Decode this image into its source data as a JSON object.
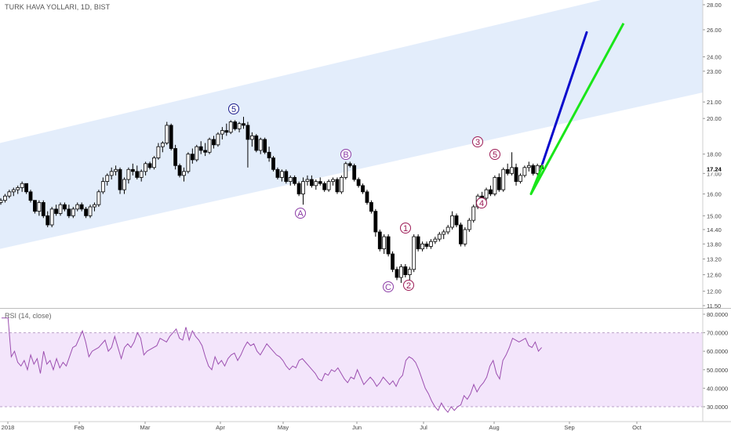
{
  "header": {
    "title": "TURK HAVA YOLLARI, 1D, BIST"
  },
  "rsi": {
    "label": "RSI (14, close)",
    "ticks": [
      30,
      40,
      50,
      60,
      70,
      80
    ],
    "tick_labels": [
      "30.0000",
      "40.0000",
      "50.0000",
      "60.0000",
      "70.0000",
      "80.0000"
    ],
    "upper": 70,
    "lower": 30,
    "values": [
      78,
      78,
      78,
      57,
      60,
      54,
      52,
      55,
      50,
      58,
      53,
      56,
      48,
      60,
      53,
      55,
      50,
      56,
      51,
      54,
      52,
      57,
      62,
      63,
      67,
      71,
      65,
      57,
      60,
      61,
      62,
      64,
      66,
      60,
      62,
      68,
      62,
      56,
      62,
      64,
      62,
      65,
      70,
      67,
      58,
      60,
      61,
      62,
      63,
      67,
      66,
      65,
      68,
      70,
      72,
      67,
      66,
      73,
      66,
      71,
      68,
      66,
      63,
      57,
      52,
      50,
      57,
      53,
      55,
      52,
      56,
      58,
      59,
      55,
      58,
      62,
      65,
      63,
      64,
      60,
      58,
      61,
      64,
      62,
      60,
      58,
      57,
      55,
      52,
      50,
      52,
      51,
      55,
      56,
      54,
      52,
      50,
      48,
      45,
      44,
      48,
      47,
      50,
      49,
      51,
      48,
      45,
      43,
      46,
      45,
      50,
      46,
      42,
      44,
      46,
      44,
      41,
      43,
      46,
      44,
      42,
      44,
      41,
      45,
      47,
      55,
      57,
      56,
      54,
      50,
      45,
      40,
      37,
      33,
      30,
      28,
      32,
      29,
      27,
      30,
      28,
      30,
      31,
      36,
      34,
      37,
      42,
      38,
      41,
      43,
      46,
      52,
      55,
      48,
      45,
      55,
      58,
      62,
      67,
      66,
      65,
      66,
      67,
      63,
      62,
      65,
      60,
      62
    ]
  },
  "chart_data": {
    "type": "candlestick",
    "title": "TURK HAVA YOLLARI, 1D, BIST",
    "price_axis": {
      "ticks": [
        11.5,
        12.0,
        12.6,
        13.2,
        13.8,
        14.4,
        15.0,
        16.0,
        17.0,
        18.0,
        20.0,
        21.0,
        23.0,
        24.0,
        26.0,
        28.0
      ],
      "tick_labels": [
        "11.50",
        "12.00",
        "12.60",
        "13.20",
        "13.80",
        "14.40",
        "15.00",
        "16.00",
        "17.00",
        "18.00",
        "20.00",
        "21.00",
        "23.00",
        "24.00",
        "26.00",
        "28.00"
      ],
      "scale": "log",
      "last_price": 17.24,
      "last_price_label": "17.24"
    },
    "time_axis": {
      "labels": [
        "2018",
        "Feb",
        "Mar",
        "Apr",
        "May",
        "Jun",
        "Jul",
        "Aug",
        "Sep",
        "Oct"
      ]
    },
    "candles": [
      [
        15.6,
        15.8,
        15.5,
        15.7
      ],
      [
        15.7,
        16.0,
        15.6,
        15.9
      ],
      [
        15.9,
        16.2,
        15.8,
        16.1
      ],
      [
        16.1,
        16.3,
        15.9,
        16.2
      ],
      [
        16.2,
        16.4,
        16.0,
        16.3
      ],
      [
        16.3,
        16.6,
        16.1,
        16.5
      ],
      [
        16.5,
        16.5,
        16.0,
        16.1
      ],
      [
        16.1,
        16.2,
        15.6,
        15.7
      ],
      [
        15.7,
        15.7,
        15.1,
        15.2
      ],
      [
        15.2,
        15.7,
        15.0,
        15.6
      ],
      [
        15.6,
        15.7,
        14.9,
        15.0
      ],
      [
        15.0,
        15.2,
        14.5,
        14.6
      ],
      [
        14.6,
        15.4,
        14.5,
        15.3
      ],
      [
        15.3,
        15.5,
        15.0,
        15.1
      ],
      [
        15.1,
        15.6,
        15.0,
        15.5
      ],
      [
        15.5,
        15.6,
        15.2,
        15.3
      ],
      [
        15.3,
        15.5,
        14.9,
        15.0
      ],
      [
        15.0,
        15.4,
        14.9,
        15.3
      ],
      [
        15.3,
        15.6,
        15.2,
        15.5
      ],
      [
        15.5,
        15.6,
        15.2,
        15.3
      ],
      [
        15.3,
        15.4,
        14.9,
        15.0
      ],
      [
        15.0,
        15.5,
        14.9,
        15.4
      ],
      [
        15.4,
        15.6,
        15.2,
        15.5
      ],
      [
        15.5,
        16.2,
        15.4,
        16.1
      ],
      [
        16.1,
        16.8,
        16.0,
        16.6
      ],
      [
        16.6,
        17.0,
        16.4,
        16.9
      ],
      [
        16.9,
        17.3,
        16.7,
        17.1
      ],
      [
        17.1,
        17.4,
        16.9,
        17.2
      ],
      [
        17.2,
        17.3,
        16.0,
        16.2
      ],
      [
        16.2,
        16.8,
        16.0,
        16.7
      ],
      [
        16.7,
        17.3,
        16.5,
        17.2
      ],
      [
        17.2,
        17.5,
        16.9,
        17.1
      ],
      [
        17.1,
        17.4,
        16.7,
        16.8
      ],
      [
        16.8,
        17.2,
        16.6,
        17.1
      ],
      [
        17.1,
        17.6,
        16.9,
        17.5
      ],
      [
        17.5,
        17.6,
        17.2,
        17.3
      ],
      [
        17.3,
        17.9,
        17.2,
        17.8
      ],
      [
        17.8,
        18.6,
        17.7,
        18.4
      ],
      [
        18.4,
        18.7,
        18.1,
        18.6
      ],
      [
        18.6,
        19.8,
        18.5,
        19.6
      ],
      [
        19.6,
        19.7,
        18.2,
        18.3
      ],
      [
        18.3,
        18.5,
        17.2,
        17.4
      ],
      [
        17.4,
        17.5,
        16.8,
        16.9
      ],
      [
        16.9,
        17.3,
        16.6,
        17.1
      ],
      [
        17.1,
        18.1,
        17.0,
        18.0
      ],
      [
        18.0,
        18.3,
        17.5,
        17.7
      ],
      [
        17.7,
        18.5,
        17.6,
        18.4
      ],
      [
        18.4,
        18.7,
        18.0,
        18.2
      ],
      [
        18.2,
        18.6,
        17.9,
        18.1
      ],
      [
        18.1,
        18.9,
        18.0,
        18.8
      ],
      [
        18.8,
        19.0,
        18.3,
        18.5
      ],
      [
        18.5,
        19.2,
        18.4,
        19.1
      ],
      [
        19.1,
        19.5,
        18.8,
        19.3
      ],
      [
        19.3,
        19.7,
        19.0,
        19.2
      ],
      [
        19.2,
        19.9,
        19.1,
        19.8
      ],
      [
        19.8,
        19.9,
        19.3,
        19.4
      ],
      [
        19.4,
        19.8,
        19.2,
        19.7
      ],
      [
        19.7,
        20.1,
        19.4,
        19.6
      ],
      [
        19.6,
        19.8,
        17.3,
        18.8
      ],
      [
        18.8,
        19.2,
        18.4,
        19.0
      ],
      [
        19.0,
        19.1,
        18.1,
        18.2
      ],
      [
        18.2,
        18.9,
        18.0,
        18.8
      ],
      [
        18.8,
        18.9,
        18.0,
        18.1
      ],
      [
        18.1,
        18.4,
        17.6,
        17.8
      ],
      [
        17.8,
        17.9,
        17.1,
        17.2
      ],
      [
        17.2,
        17.3,
        16.7,
        16.8
      ],
      [
        16.8,
        17.2,
        16.6,
        17.1
      ],
      [
        17.1,
        17.2,
        16.5,
        16.6
      ],
      [
        16.6,
        16.9,
        16.4,
        16.8
      ],
      [
        16.8,
        16.9,
        16.4,
        16.5
      ],
      [
        16.5,
        16.6,
        15.9,
        16.0
      ],
      [
        16.0,
        16.8,
        15.5,
        16.6
      ],
      [
        16.6,
        16.9,
        16.4,
        16.7
      ],
      [
        16.7,
        16.9,
        16.3,
        16.4
      ],
      [
        16.4,
        16.7,
        16.2,
        16.6
      ],
      [
        16.6,
        16.8,
        16.4,
        16.5
      ],
      [
        16.5,
        16.6,
        16.1,
        16.2
      ],
      [
        16.2,
        16.7,
        16.1,
        16.6
      ],
      [
        16.6,
        16.8,
        16.4,
        16.7
      ],
      [
        16.7,
        16.8,
        16.0,
        16.1
      ],
      [
        16.1,
        16.9,
        16.0,
        16.8
      ],
      [
        16.8,
        17.6,
        16.7,
        17.5
      ],
      [
        17.5,
        17.6,
        17.3,
        17.4
      ],
      [
        17.4,
        17.5,
        16.6,
        16.7
      ],
      [
        16.7,
        16.8,
        16.3,
        16.4
      ],
      [
        16.4,
        16.5,
        16.0,
        16.1
      ],
      [
        16.1,
        16.2,
        15.5,
        15.6
      ],
      [
        15.6,
        15.7,
        15.1,
        15.2
      ],
      [
        15.2,
        15.3,
        14.1,
        14.3
      ],
      [
        14.3,
        14.4,
        13.5,
        13.6
      ],
      [
        13.6,
        14.2,
        13.4,
        14.1
      ],
      [
        14.1,
        14.2,
        13.3,
        13.4
      ],
      [
        13.4,
        13.5,
        12.7,
        12.8
      ],
      [
        12.8,
        12.9,
        12.4,
        12.5
      ],
      [
        12.5,
        13.0,
        12.3,
        12.9
      ],
      [
        12.9,
        13.0,
        12.5,
        12.6
      ],
      [
        12.6,
        12.9,
        12.4,
        12.8
      ],
      [
        12.8,
        14.2,
        12.7,
        14.1
      ],
      [
        14.1,
        14.2,
        13.5,
        13.6
      ],
      [
        13.6,
        13.9,
        13.5,
        13.8
      ],
      [
        13.8,
        13.9,
        13.6,
        13.7
      ],
      [
        13.7,
        14.0,
        13.6,
        13.9
      ],
      [
        13.9,
        14.1,
        13.8,
        14.0
      ],
      [
        14.0,
        14.3,
        13.9,
        14.2
      ],
      [
        14.2,
        14.4,
        14.0,
        14.3
      ],
      [
        14.3,
        14.6,
        14.2,
        14.5
      ],
      [
        14.5,
        15.2,
        14.4,
        15.0
      ],
      [
        15.0,
        15.1,
        14.5,
        14.6
      ],
      [
        14.6,
        14.7,
        13.7,
        13.8
      ],
      [
        13.8,
        14.5,
        13.7,
        14.4
      ],
      [
        14.4,
        14.9,
        14.3,
        14.8
      ],
      [
        14.8,
        15.5,
        14.7,
        15.4
      ],
      [
        15.4,
        16.0,
        15.3,
        15.9
      ],
      [
        15.9,
        16.1,
        15.6,
        15.8
      ],
      [
        15.8,
        16.3,
        15.7,
        16.2
      ],
      [
        16.2,
        16.4,
        15.9,
        16.0
      ],
      [
        16.0,
        16.9,
        15.9,
        16.8
      ],
      [
        16.8,
        17.0,
        16.1,
        16.2
      ],
      [
        16.2,
        17.3,
        16.1,
        17.2
      ],
      [
        17.2,
        17.5,
        16.9,
        17.0
      ],
      [
        17.0,
        18.1,
        16.9,
        17.3
      ],
      [
        17.3,
        17.5,
        16.4,
        16.6
      ],
      [
        16.6,
        17.0,
        16.5,
        16.9
      ],
      [
        16.9,
        17.4,
        16.8,
        17.3
      ],
      [
        17.3,
        17.6,
        17.1,
        17.4
      ],
      [
        17.4,
        17.5,
        16.9,
        17.0
      ],
      [
        17.0,
        17.5,
        16.9,
        17.4
      ],
      [
        17.4,
        17.5,
        17.2,
        17.24
      ]
    ],
    "channel": {
      "lower_start": 13.6,
      "lower_end": 21.6,
      "upper_start": 18.6,
      "upper_end": 30.5
    },
    "projections": [
      {
        "color": "#0a0acc",
        "from": 17.5,
        "to": 25.8
      },
      {
        "color": "#19e619",
        "points": [
          17.4,
          16.0,
          26.5
        ]
      }
    ],
    "wave_labels": [
      {
        "text": "5",
        "style": "blue"
      },
      {
        "text": "A",
        "style": "purple"
      },
      {
        "text": "B",
        "style": "purple"
      },
      {
        "text": "C",
        "style": "purple"
      },
      {
        "text": "1",
        "style": "crimson"
      },
      {
        "text": "2",
        "style": "crimson"
      },
      {
        "text": "3",
        "style": "crimson"
      },
      {
        "text": "4",
        "style": "crimson"
      },
      {
        "text": "5",
        "style": "crimson"
      }
    ],
    "colors": {
      "up": "#ffffff",
      "down": "#000000",
      "wick": "#000000",
      "channel_fill": "#e3edfb",
      "rsi_line": "#9c4fb0",
      "rsi_band": "#f3e5fb"
    }
  }
}
